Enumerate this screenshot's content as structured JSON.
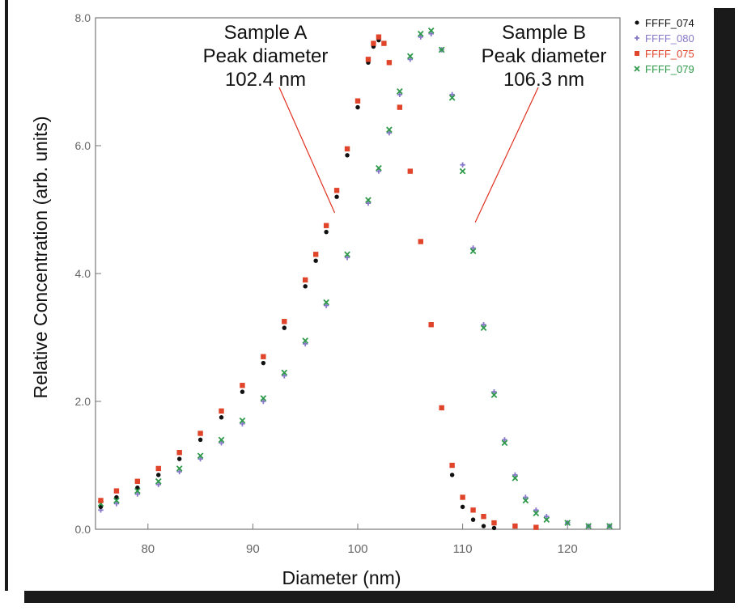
{
  "chart_data": {
    "type": "scatter",
    "title": "",
    "xlabel": "Diameter (nm)",
    "ylabel": "Relative Concentration (arb. units)",
    "xlim": [
      75,
      125
    ],
    "ylim": [
      0,
      8
    ],
    "xticks": [
      80,
      90,
      100,
      110,
      120
    ],
    "yticks": [
      0,
      2,
      4,
      6,
      8
    ],
    "xtick_labels": [
      "80",
      "90",
      "100",
      "110",
      "120"
    ],
    "ytick_labels": [
      "0.0",
      "2.0",
      "4.0",
      "6.0",
      "8.0"
    ],
    "grid": false,
    "legend": {
      "placement": "top-right outside"
    },
    "series": [
      {
        "name": "FFFF_074",
        "color": "#111111",
        "marker": "dot",
        "x": [
          75.5,
          77,
          79,
          81,
          83,
          85,
          87,
          89,
          91,
          93,
          95,
          96,
          97,
          98,
          99,
          100,
          101,
          101.5,
          102,
          102.5,
          103,
          104,
          105,
          106,
          107,
          108,
          109,
          110,
          111,
          112,
          113
        ],
        "y": [
          0.35,
          0.5,
          0.65,
          0.85,
          1.1,
          1.4,
          1.75,
          2.15,
          2.6,
          3.15,
          3.8,
          4.2,
          4.65,
          5.2,
          5.85,
          6.6,
          7.3,
          7.55,
          7.65,
          7.6,
          7.3,
          6.6,
          5.6,
          4.5,
          3.2,
          1.9,
          0.85,
          0.35,
          0.15,
          0.05,
          0.02
        ]
      },
      {
        "name": "FFFF_080",
        "color": "#8878c8",
        "marker": "plus",
        "x": [
          75.5,
          77,
          79,
          81,
          83,
          85,
          87,
          89,
          91,
          93,
          95,
          97,
          99,
          101,
          102,
          103,
          104,
          105,
          106,
          107,
          108,
          109,
          110,
          111,
          112,
          113,
          114,
          115,
          116,
          117,
          118,
          120,
          122,
          124
        ],
        "y": [
          0.3,
          0.4,
          0.55,
          0.7,
          0.9,
          1.1,
          1.35,
          1.65,
          2.0,
          2.4,
          2.9,
          3.5,
          4.25,
          5.1,
          5.6,
          6.2,
          6.8,
          7.35,
          7.7,
          7.75,
          7.5,
          6.8,
          5.7,
          4.4,
          3.2,
          2.15,
          1.4,
          0.85,
          0.5,
          0.3,
          0.2,
          0.1,
          0.05,
          0.05
        ]
      },
      {
        "name": "FFFF_075",
        "color": "#e0442a",
        "marker": "square",
        "x": [
          75.5,
          77,
          79,
          81,
          83,
          85,
          87,
          89,
          91,
          93,
          95,
          96,
          97,
          98,
          99,
          100,
          101,
          101.5,
          102,
          102.5,
          103,
          104,
          105,
          106,
          107,
          108,
          109,
          110,
          111,
          112,
          113,
          115,
          117
        ],
        "y": [
          0.45,
          0.6,
          0.75,
          0.95,
          1.2,
          1.5,
          1.85,
          2.25,
          2.7,
          3.25,
          3.9,
          4.3,
          4.75,
          5.3,
          5.95,
          6.7,
          7.35,
          7.6,
          7.7,
          7.6,
          7.3,
          6.6,
          5.6,
          4.5,
          3.2,
          1.9,
          1.0,
          0.5,
          0.3,
          0.2,
          0.1,
          0.05,
          0.03
        ]
      },
      {
        "name": "FFFF_079",
        "color": "#2e9a4a",
        "marker": "cross",
        "x": [
          75.5,
          77,
          79,
          81,
          83,
          85,
          87,
          89,
          91,
          93,
          95,
          97,
          99,
          101,
          102,
          103,
          104,
          105,
          106,
          107,
          108,
          109,
          110,
          111,
          112,
          113,
          114,
          115,
          116,
          117,
          118,
          120,
          122,
          124
        ],
        "y": [
          0.4,
          0.45,
          0.6,
          0.75,
          0.95,
          1.15,
          1.4,
          1.7,
          2.05,
          2.45,
          2.95,
          3.55,
          4.3,
          5.15,
          5.65,
          6.25,
          6.85,
          7.4,
          7.75,
          7.8,
          7.5,
          6.75,
          5.6,
          4.35,
          3.15,
          2.1,
          1.35,
          0.8,
          0.45,
          0.25,
          0.15,
          0.1,
          0.05,
          0.05
        ]
      }
    ],
    "annotations": [
      {
        "name": "sample-a",
        "lines": [
          "Sample A",
          "Peak diameter",
          "102.4 nm"
        ],
        "arrow_to": [
          97.8,
          4.95
        ]
      },
      {
        "name": "sample-b",
        "lines": [
          "Sample B",
          "Peak diameter",
          "106.3 nm"
        ],
        "arrow_to": [
          111.2,
          4.8
        ]
      }
    ]
  }
}
